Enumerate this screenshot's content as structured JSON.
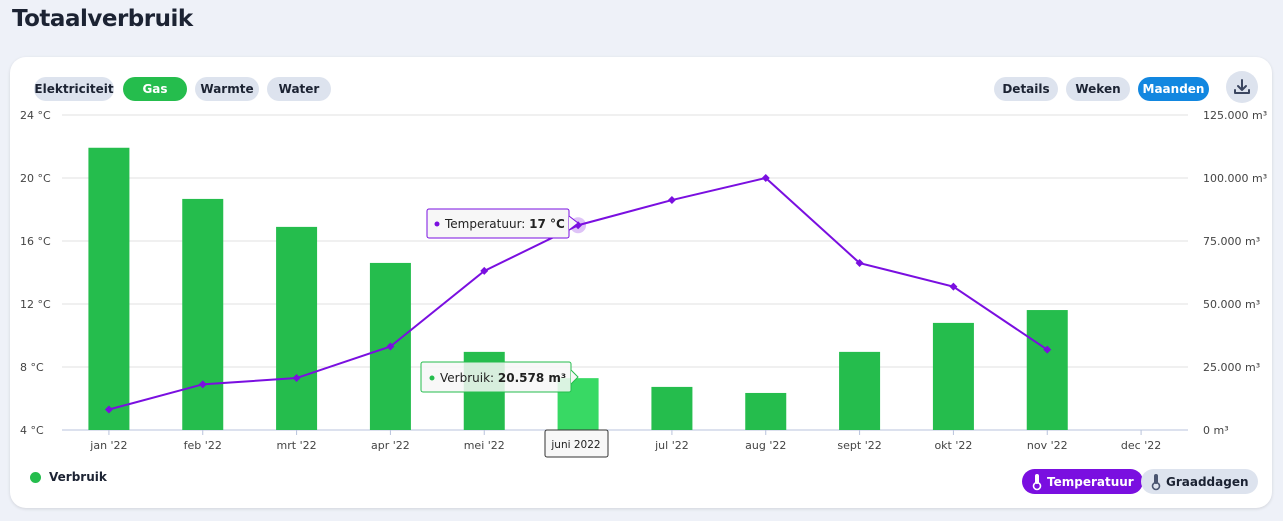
{
  "title": "Totaalverbruik",
  "utility_tabs": [
    "Elektriciteit",
    "Gas",
    "Warmte",
    "Water"
  ],
  "active_utility": "Gas",
  "view_tabs": [
    "Details",
    "Weken",
    "Maanden"
  ],
  "active_view": "Maanden",
  "colors": {
    "bar": "#25bd4d",
    "bar_hover": "#38d964",
    "line": "#7a0fe0",
    "active_blue": "#1287e0"
  },
  "legend": {
    "verbruik": "Verbruik"
  },
  "toggles": {
    "temperatuur": "Temperatuur",
    "graaddagen": "Graaddagen"
  },
  "tooltips": {
    "temp_label": "Temperatuur: ",
    "temp_value": "17 °C",
    "usage_label": "Verbruik: ",
    "usage_value": "20.578 m³",
    "x_label": "juni 2022"
  },
  "chart_data": {
    "type": "bar",
    "categories": [
      "jan '22",
      "feb '22",
      "mrt '22",
      "apr '22",
      "mei '22",
      "juni '22",
      "jul '22",
      "aug '22",
      "sept '22",
      "okt '22",
      "nov '22",
      "dec '22"
    ],
    "series": [
      {
        "name": "Verbruik",
        "type": "bar",
        "unit": "m³",
        "values": [
          112000,
          91700,
          80600,
          66300,
          31000,
          20578,
          17100,
          14700,
          31000,
          42500,
          47600,
          null
        ]
      },
      {
        "name": "Temperatuur",
        "type": "line",
        "unit": "°C",
        "values": [
          5.3,
          6.9,
          7.3,
          9.3,
          14.1,
          17,
          18.6,
          20,
          14.6,
          13.1,
          9.1,
          null
        ]
      }
    ],
    "y_left": {
      "ticks": [
        "4 °C",
        "8 °C",
        "12 °C",
        "16 °C",
        "20 °C",
        "24 °C"
      ],
      "range": [
        4,
        24
      ]
    },
    "y_right": {
      "ticks": [
        "0 m³",
        "25.000 m³",
        "50.000 m³",
        "75.000 m³",
        "100.000 m³",
        "125.000 m³"
      ],
      "range": [
        0,
        125000
      ]
    },
    "grid": true,
    "legend_placement": "bottom-left"
  }
}
